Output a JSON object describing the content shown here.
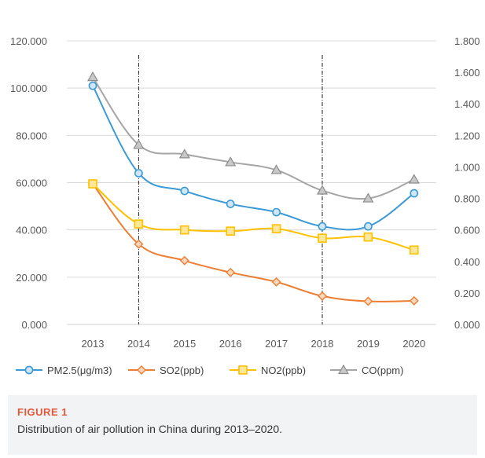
{
  "chart_data": {
    "type": "line",
    "categories": [
      "2013",
      "2014",
      "2015",
      "2016",
      "2017",
      "2018",
      "2019",
      "2020"
    ],
    "series": [
      {
        "name": "PM2.5(μg/m3)",
        "axis": "left",
        "color": "#3b9ad5",
        "marker": "circle",
        "values": [
          101.0,
          64.0,
          56.5,
          51.0,
          47.5,
          41.5,
          41.5,
          55.5
        ]
      },
      {
        "name": "SO2(ppb)",
        "axis": "left",
        "color": "#ed7d31",
        "marker": "diamond",
        "values": [
          59.5,
          34.0,
          27.0,
          22.0,
          18.0,
          12.0,
          9.8,
          10.0
        ]
      },
      {
        "name": "NO2(ppb)",
        "axis": "left",
        "color": "#ffc000",
        "marker": "square",
        "values": [
          59.5,
          42.5,
          40.0,
          39.5,
          40.5,
          36.5,
          37.0,
          31.5
        ]
      },
      {
        "name": "CO(ppm)",
        "axis": "right",
        "color": "#a5a5a5",
        "marker": "triangle",
        "values": [
          1.57,
          1.14,
          1.08,
          1.03,
          0.98,
          0.85,
          0.8,
          0.92
        ]
      }
    ],
    "y_left": {
      "min": 0,
      "max": 120,
      "step": 20,
      "ticks": [
        "0.000",
        "20.000",
        "40.000",
        "60.000",
        "80.000",
        "100.000",
        "120.000"
      ]
    },
    "y_right": {
      "min": 0,
      "max": 1.8,
      "step": 0.2,
      "ticks": [
        "0.000",
        "0.200",
        "0.400",
        "0.600",
        "0.800",
        "1.000",
        "1.200",
        "1.400",
        "1.600",
        "1.800"
      ]
    },
    "reference_lines": [
      "2014",
      "2018"
    ],
    "grid": "horizontal",
    "legend_position": "bottom"
  },
  "caption": {
    "label": "FIGURE 1",
    "text": "Distribution of air pollution in China during 2013–2020."
  }
}
